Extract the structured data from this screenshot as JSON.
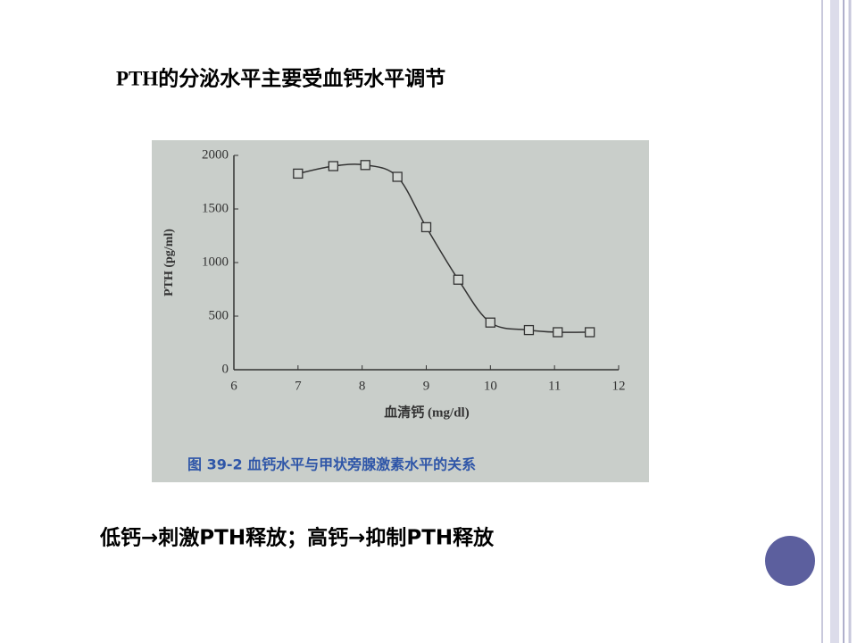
{
  "slide_title": "PTH的分泌水平主要受血钙水平调节",
  "chart_data": {
    "type": "line",
    "x_label": "血清钙 (mg/dl)",
    "y_label": "PTH (pg/ml)",
    "caption": "图 39-2  血钙水平与甲状旁腺激素水平的关系",
    "x": [
      7,
      7.55,
      8.05,
      8.55,
      9.0,
      9.5,
      10.0,
      10.6,
      11.05,
      11.55
    ],
    "series": [
      {
        "color": "#333333",
        "values": [
          1830,
          1900,
          1910,
          1800,
          1330,
          840,
          440,
          370,
          350,
          350
        ]
      }
    ],
    "xlim": [
      6,
      12
    ],
    "xticks": [
      6,
      7,
      8,
      9,
      10,
      11,
      12
    ],
    "ylim": [
      0,
      2000
    ],
    "yticks": [
      0,
      500,
      1000,
      1500,
      2000
    ]
  },
  "footer_text": "低钙→刺激PTH释放；高钙→抑制PTH释放"
}
